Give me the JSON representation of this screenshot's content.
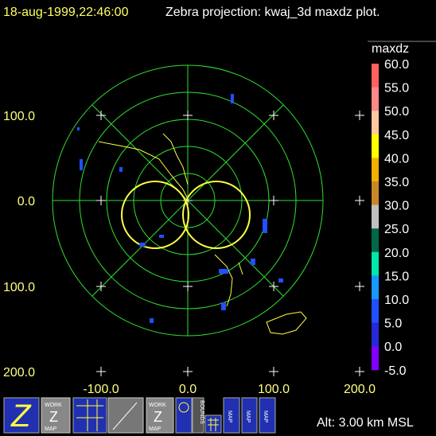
{
  "header": {
    "timestamp": "18-aug-1999,22:46:00",
    "title": "Zebra projection: kwaj_3d maxdz plot."
  },
  "colorbar": {
    "title": "maxdz",
    "labels": [
      "60.0",
      "55.0",
      "50.0",
      "45.0",
      "40.0",
      "35.0",
      "30.0",
      "25.0",
      "20.0",
      "15.0",
      "10.0",
      "5.0",
      "0.0",
      "-5.0"
    ],
    "colors": [
      "#ff6060",
      "#ff8888",
      "#ffc8a0",
      "#ffff00",
      "#f0b000",
      "#c88828",
      "#c0c0c0",
      "#006848",
      "#00e8a8",
      "#1898ff",
      "#2050ff",
      "#2828d8",
      "#8000ff"
    ]
  },
  "axes": {
    "y_labels": [
      "100.0",
      "0.0",
      "100.0",
      "200.0"
    ],
    "x_labels": [
      "-100.0",
      "0.0",
      "100.0",
      "200.0"
    ]
  },
  "toolbar": {
    "work_map_1": [
      "WORK",
      "MAP"
    ],
    "work_map_2": [
      "WORK",
      "MAP"
    ],
    "bounds": "BOUNDS",
    "map_buttons": [
      "MAP",
      "MAP",
      "MAP"
    ]
  },
  "status": "Alt: 3.00 km MSL"
}
